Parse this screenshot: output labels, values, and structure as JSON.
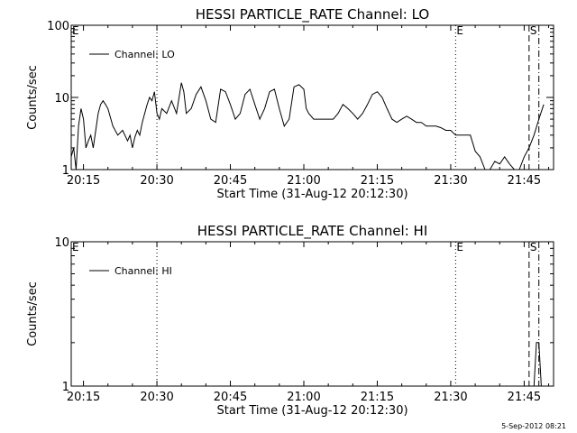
{
  "footer": {
    "timestamp": "5-Sep-2012 08:21"
  },
  "chart_data": [
    {
      "type": "line",
      "title": "HESSI PARTICLE_RATE Channel: LO",
      "xlabel": "Start Time (31-Aug-12 20:12:30)",
      "ylabel": "Counts/sec",
      "yscale": "log",
      "xlim": [
        "20:12:30",
        "21:51:00"
      ],
      "ylim": [
        1,
        100
      ],
      "x_ticks": [
        "20:15",
        "20:30",
        "20:45",
        "21:00",
        "21:15",
        "21:30",
        "21:45"
      ],
      "y_ticks": [
        "1",
        "10",
        "100"
      ],
      "legend": {
        "placement": "top-left",
        "entries": [
          "Channel: LO"
        ]
      },
      "markers": [
        {
          "label": "E",
          "x": "20:12:30",
          "style": "none"
        },
        {
          "label": "E",
          "x": "21:31:00",
          "style": "dotted"
        },
        {
          "label": "S",
          "x": "21:46:00",
          "style": "dashed"
        },
        {
          "label": "",
          "x": "21:48:00",
          "style": "dash-dot"
        },
        {
          "label": "",
          "x": "20:30:00",
          "style": "dotted"
        }
      ],
      "series": [
        {
          "name": "Channel: LO",
          "x": [
            "20:12:30",
            "20:13:00",
            "20:13:30",
            "20:14:00",
            "20:14:30",
            "20:15:00",
            "20:15:30",
            "20:16:00",
            "20:16:30",
            "20:17:00",
            "20:17:30",
            "20:18:00",
            "20:18:30",
            "20:19:00",
            "20:19:30",
            "20:20:00",
            "20:21:00",
            "20:22:00",
            "20:23:00",
            "20:24:00",
            "20:24:30",
            "20:25:00",
            "20:25:30",
            "20:26:00",
            "20:26:30",
            "20:27:00",
            "20:27:30",
            "20:28:00",
            "20:28:30",
            "20:29:00",
            "20:29:30",
            "20:30:00",
            "20:30:30",
            "20:31:00",
            "20:32:00",
            "20:33:00",
            "20:34:00",
            "20:35:00",
            "20:35:30",
            "20:36:00",
            "20:37:00",
            "20:38:00",
            "20:39:00",
            "20:40:00",
            "20:41:00",
            "20:42:00",
            "20:43:00",
            "20:44:00",
            "20:45:00",
            "20:46:00",
            "20:47:00",
            "20:48:00",
            "20:49:00",
            "20:50:00",
            "20:51:00",
            "20:52:00",
            "20:53:00",
            "20:54:00",
            "20:55:00",
            "20:56:00",
            "20:57:00",
            "20:58:00",
            "20:59:00",
            "21:00:00",
            "21:00:30",
            "21:01:00",
            "21:02:00",
            "21:03:00",
            "21:04:00",
            "21:05:00",
            "21:06:00",
            "21:07:00",
            "21:08:00",
            "21:09:00",
            "21:10:00",
            "21:11:00",
            "21:12:00",
            "21:13:00",
            "21:14:00",
            "21:15:00",
            "21:16:00",
            "21:17:00",
            "21:18:00",
            "21:19:00",
            "21:20:00",
            "21:21:00",
            "21:22:00",
            "21:23:00",
            "21:24:00",
            "21:25:00",
            "21:26:00",
            "21:27:00",
            "21:28:00",
            "21:29:00",
            "21:30:00",
            "21:31:00",
            "21:32:00",
            "21:33:00",
            "21:34:00",
            "21:35:00",
            "21:36:00",
            "21:37:00",
            "21:38:00",
            "21:39:00",
            "21:40:00",
            "21:41:00",
            "21:42:00",
            "21:43:00",
            "21:44:00",
            "21:45:00",
            "21:46:00",
            "21:47:00",
            "21:48:00",
            "21:49:00"
          ],
          "y": [
            1.5,
            2.0,
            1.0,
            4.0,
            7.0,
            5.0,
            2.0,
            2.5,
            3.0,
            2.0,
            3.5,
            6.0,
            8.0,
            9.0,
            8.0,
            7.0,
            4.0,
            3.0,
            3.5,
            2.5,
            3.0,
            2.0,
            2.8,
            3.5,
            3.0,
            4.5,
            6.0,
            8.0,
            10.0,
            9.0,
            12.0,
            6.0,
            5.0,
            7.0,
            6.0,
            9.0,
            6.0,
            16.0,
            12.0,
            6.0,
            7.0,
            11.0,
            14.0,
            9.0,
            5.0,
            4.5,
            13.0,
            12.0,
            8.0,
            5.0,
            6.0,
            11.0,
            13.0,
            8.0,
            5.0,
            7.0,
            12.0,
            13.0,
            7.0,
            4.0,
            5.0,
            14.0,
            15.0,
            13.0,
            7.0,
            6.0,
            5.0,
            5.0,
            5.0,
            5.0,
            5.0,
            6.0,
            8.0,
            7.0,
            6.0,
            5.0,
            6.0,
            8.0,
            11.0,
            12.0,
            10.0,
            7.0,
            5.0,
            4.5,
            5.0,
            5.5,
            5.0,
            4.5,
            4.5,
            4.0,
            4.0,
            4.0,
            3.8,
            3.5,
            3.5,
            3.0,
            3.0,
            3.0,
            3.0,
            1.8,
            1.5,
            1.0,
            1.0,
            1.3,
            1.2,
            1.5,
            1.2,
            1.0,
            1.0,
            1.5,
            2.0,
            3.0,
            5.0,
            8.0
          ]
        }
      ]
    },
    {
      "type": "line",
      "title": "HESSI PARTICLE_RATE Channel: HI",
      "xlabel": "Start Time (31-Aug-12 20:12:30)",
      "ylabel": "Counts/sec",
      "yscale": "log",
      "xlim": [
        "20:12:30",
        "21:51:00"
      ],
      "ylim": [
        1,
        10
      ],
      "x_ticks": [
        "20:15",
        "20:30",
        "20:45",
        "21:00",
        "21:15",
        "21:30",
        "21:45"
      ],
      "y_ticks": [
        "1",
        "10"
      ],
      "legend": {
        "placement": "top-left",
        "entries": [
          "Channel: HI"
        ]
      },
      "markers": [
        {
          "label": "E",
          "x": "20:12:30",
          "style": "none"
        },
        {
          "label": "E",
          "x": "21:31:00",
          "style": "dotted"
        },
        {
          "label": "S",
          "x": "21:46:00",
          "style": "dashed"
        },
        {
          "label": "",
          "x": "21:48:00",
          "style": "dash-dot"
        },
        {
          "label": "",
          "x": "20:30:00",
          "style": "dotted"
        }
      ],
      "series": [
        {
          "name": "Channel: HI",
          "x": [
            "21:47:00",
            "21:47:30",
            "21:48:00",
            "21:48:30"
          ],
          "y": [
            1.0,
            2.0,
            2.0,
            1.0
          ]
        }
      ]
    }
  ]
}
